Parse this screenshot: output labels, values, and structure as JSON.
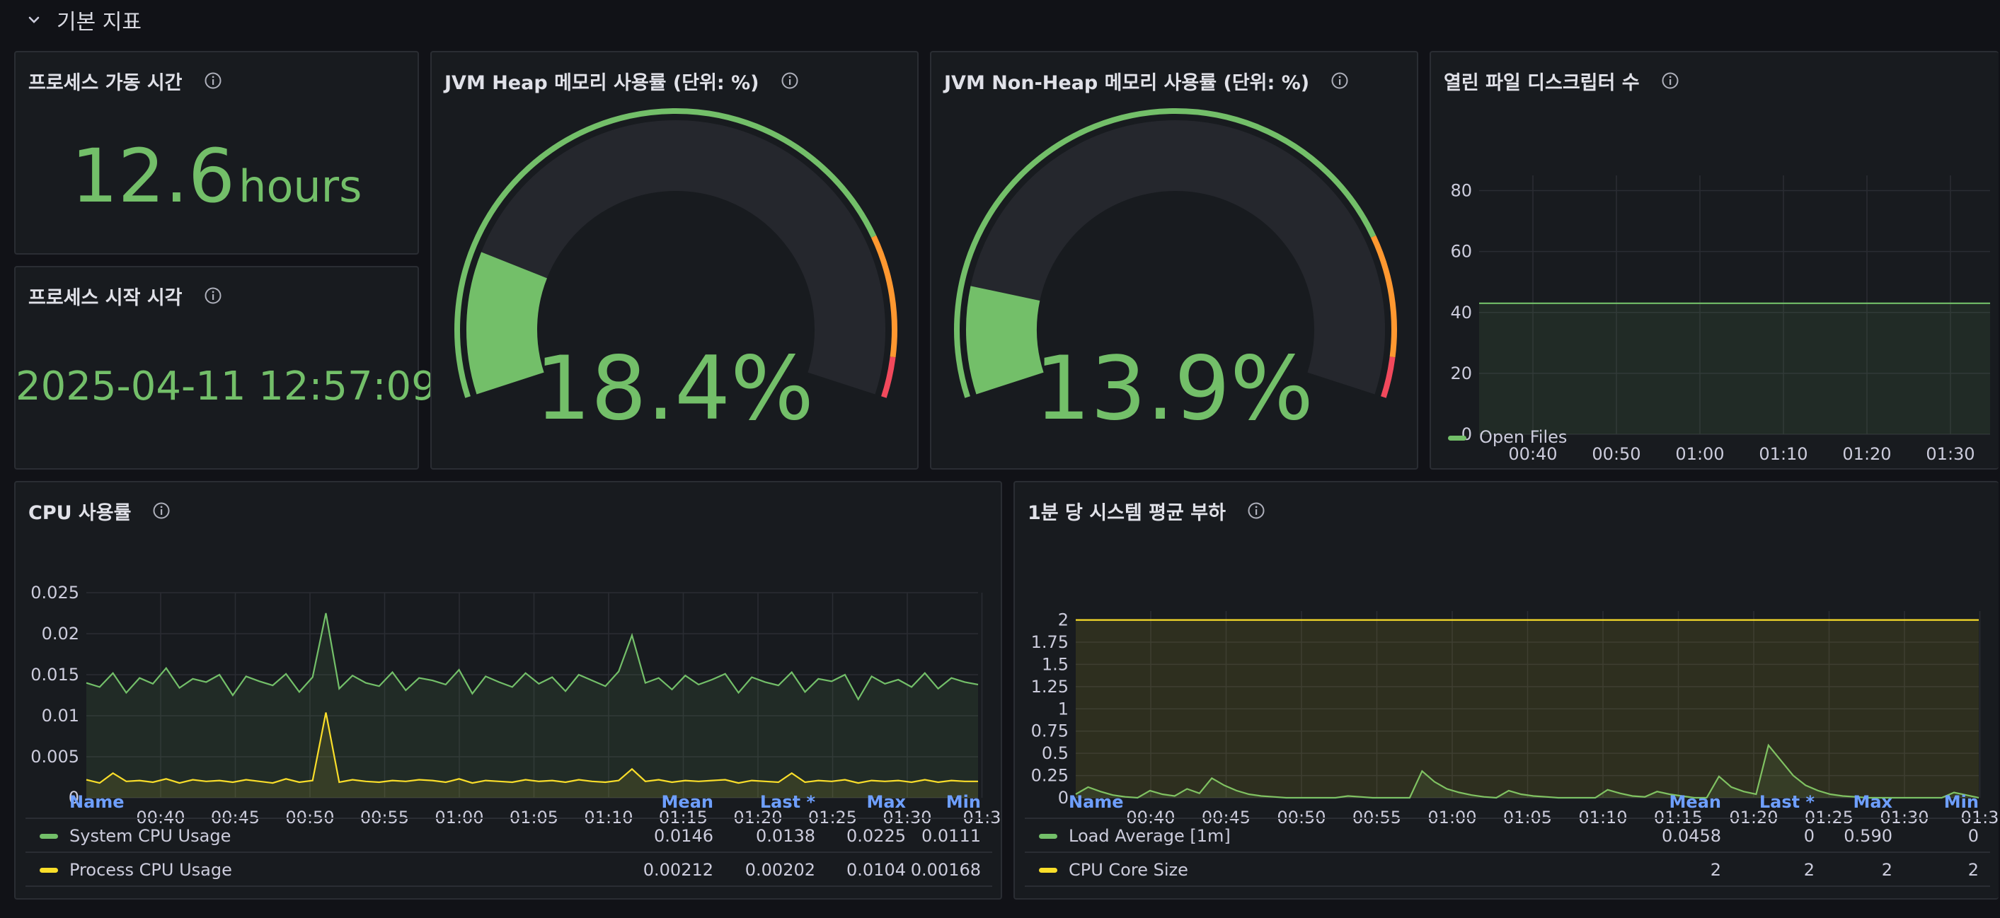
{
  "row": {
    "title": "기본 지표",
    "icon": "chevron-down-icon"
  },
  "colors": {
    "green": "#73bf69",
    "yellow": "#fade2a",
    "orange": "#ff9830",
    "red": "#f2495c",
    "legend_header": "#6e9fff"
  },
  "uptime": {
    "title": "프로세스 가동 시간",
    "value": "12.6",
    "unit": "hours"
  },
  "start_time": {
    "title": "프로세스 시작 시각",
    "value": "2025-04-11 12:57:09"
  },
  "heap": {
    "title": "JVM Heap 메모리 사용률 (단위: %)",
    "value": 18.4,
    "display": "18.4%"
  },
  "nonheap": {
    "title": "JVM Non-Heap 메모리 사용률 (단위: %)",
    "value": 13.9,
    "display": "13.9%"
  },
  "open_files": {
    "title": "열린 파일 디스크립터 수",
    "legend": [
      "Open Files"
    ]
  },
  "cpu": {
    "title": "CPU 사용률",
    "legend_headers": [
      "Name",
      "Mean",
      "Last *",
      "Max",
      "Min"
    ],
    "legend_rows": [
      {
        "name": "System CPU Usage",
        "mean": "0.0146",
        "last": "0.0138",
        "max": "0.0225",
        "min": "0.0111"
      },
      {
        "name": "Process CPU Usage",
        "mean": "0.00212",
        "last": "0.00202",
        "max": "0.0104",
        "min": "0.00168"
      }
    ]
  },
  "load": {
    "title": "1분 당 시스템 평균 부하",
    "legend_headers": [
      "Name",
      "Mean",
      "Last *",
      "Max",
      "Min"
    ],
    "legend_rows": [
      {
        "name": "Load Average [1m]",
        "mean": "0.0458",
        "last": "0",
        "max": "0.590",
        "min": "0"
      },
      {
        "name": "CPU Core Size",
        "mean": "2",
        "last": "2",
        "max": "2",
        "min": "2"
      }
    ]
  },
  "chart_data": [
    {
      "type": "line",
      "id": "open_files",
      "x_ticks": [
        "00:40",
        "00:50",
        "01:00",
        "01:10",
        "01:20",
        "01:30"
      ],
      "y_ticks": [
        "0",
        "20",
        "40",
        "60",
        "80"
      ],
      "ylim": [
        0,
        85
      ],
      "series": [
        {
          "name": "Open Files",
          "values": [
            43,
            43,
            43,
            43,
            43,
            43,
            43
          ]
        }
      ],
      "legend_position": "bottom-left",
      "grid": true
    },
    {
      "type": "line",
      "id": "cpu",
      "x_ticks": [
        "00:40",
        "00:45",
        "00:50",
        "00:55",
        "01:00",
        "01:05",
        "01:10",
        "01:15",
        "01:20",
        "01:25",
        "01:30",
        "01:3"
      ],
      "y_ticks": [
        "0",
        "0.005",
        "0.01",
        "0.015",
        "0.02",
        "0.025"
      ],
      "ylim": [
        0,
        0.025
      ],
      "series": [
        {
          "name": "System CPU Usage",
          "values": [
            0.014,
            0.0135,
            0.0152,
            0.0128,
            0.0146,
            0.0139,
            0.0158,
            0.0134,
            0.0145,
            0.0141,
            0.015,
            0.0125,
            0.0148,
            0.0142,
            0.0137,
            0.0151,
            0.0129,
            0.0147,
            0.0225,
            0.0133,
            0.0149,
            0.014,
            0.0136,
            0.0153,
            0.0131,
            0.0146,
            0.0143,
            0.0138,
            0.0156,
            0.0127,
            0.0148,
            0.0141,
            0.0135,
            0.0152,
            0.0139,
            0.0147,
            0.013,
            0.015,
            0.0143,
            0.0136,
            0.0154,
            0.0198,
            0.014,
            0.0146,
            0.0132,
            0.0149,
            0.0138,
            0.0144,
            0.0151,
            0.0128,
            0.0147,
            0.0141,
            0.0137,
            0.0153,
            0.0129,
            0.0145,
            0.0142,
            0.015,
            0.012,
            0.0148,
            0.0139,
            0.0144,
            0.0135,
            0.0152,
            0.0133,
            0.0146,
            0.0141,
            0.0138
          ]
        },
        {
          "name": "Process CPU Usage",
          "values": [
            0.0022,
            0.0018,
            0.003,
            0.002,
            0.0021,
            0.0019,
            0.0023,
            0.0018,
            0.0022,
            0.002,
            0.0021,
            0.0019,
            0.0022,
            0.002,
            0.0018,
            0.0023,
            0.0019,
            0.0021,
            0.0104,
            0.0019,
            0.0022,
            0.002,
            0.0019,
            0.0021,
            0.002,
            0.0022,
            0.0021,
            0.0019,
            0.0023,
            0.0018,
            0.0021,
            0.002,
            0.0019,
            0.0022,
            0.002,
            0.0021,
            0.0019,
            0.0022,
            0.002,
            0.0019,
            0.0021,
            0.0035,
            0.002,
            0.0022,
            0.0019,
            0.0021,
            0.002,
            0.0021,
            0.0022,
            0.0018,
            0.0021,
            0.002,
            0.0019,
            0.003,
            0.0019,
            0.0021,
            0.002,
            0.0022,
            0.0018,
            0.0021,
            0.002,
            0.0021,
            0.0019,
            0.0022,
            0.0019,
            0.0021,
            0.002,
            0.002
          ]
        }
      ],
      "grid": true
    },
    {
      "type": "line",
      "id": "load",
      "x_ticks": [
        "00:40",
        "00:45",
        "00:50",
        "00:55",
        "01:00",
        "01:05",
        "01:10",
        "01:15",
        "01:20",
        "01:25",
        "01:30",
        "01:3"
      ],
      "y_ticks": [
        "0",
        "0.25",
        "0.5",
        "0.75",
        "1",
        "1.25",
        "1.5",
        "1.75",
        "2"
      ],
      "ylim": [
        0,
        2.1
      ],
      "series": [
        {
          "name": "Load Average [1m]",
          "values": [
            0.04,
            0.12,
            0.07,
            0.03,
            0.01,
            0.0,
            0.08,
            0.04,
            0.02,
            0.1,
            0.05,
            0.22,
            0.14,
            0.08,
            0.04,
            0.02,
            0.01,
            0.0,
            0.0,
            0.0,
            0.0,
            0.0,
            0.02,
            0.01,
            0.0,
            0.0,
            0.0,
            0.0,
            0.3,
            0.18,
            0.1,
            0.06,
            0.03,
            0.01,
            0.0,
            0.08,
            0.04,
            0.02,
            0.01,
            0.0,
            0.0,
            0.0,
            0.0,
            0.09,
            0.05,
            0.02,
            0.01,
            0.07,
            0.04,
            0.02,
            0.0,
            0.0,
            0.24,
            0.12,
            0.07,
            0.04,
            0.59,
            0.42,
            0.25,
            0.14,
            0.08,
            0.04,
            0.02,
            0.01,
            0.0,
            0.0,
            0.0,
            0.0,
            0.0,
            0.0,
            0.0,
            0.06,
            0.03,
            0.0
          ]
        },
        {
          "name": "CPU Core Size",
          "values": [
            2,
            2,
            2,
            2,
            2,
            2,
            2,
            2
          ]
        }
      ],
      "grid": true
    }
  ]
}
